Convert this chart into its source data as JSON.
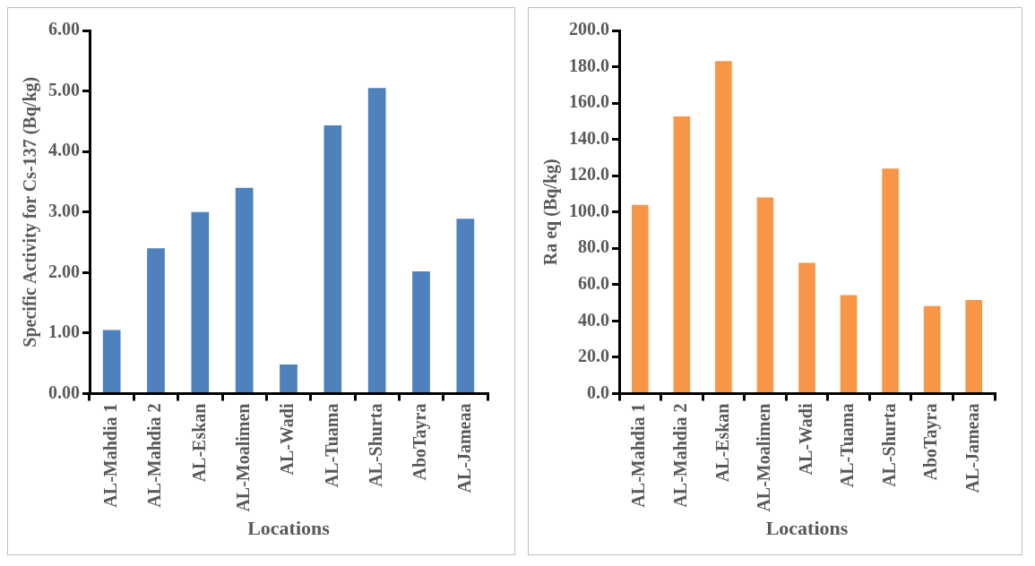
{
  "chart_data": [
    {
      "type": "bar",
      "xlabel": "Locations",
      "ylabel": "Specific Activity for Cs-137 (Bq/kg)",
      "categories": [
        "AL-Mahdia 1",
        "AL-Mahdia 2",
        "AL-Eskan",
        "AL-Moalimen",
        "AL-Wadi",
        "AL-Tuama",
        "AL-Shurta",
        "AboTayra",
        "AL-Jameaa"
      ],
      "series": [
        {
          "color": "#4f81bd",
          "values": [
            1.05,
            2.4,
            3.0,
            3.4,
            0.48,
            4.43,
            5.05,
            2.02,
            2.89
          ]
        }
      ],
      "ylim": [
        0,
        6
      ],
      "yticks": [
        {
          "value": 0,
          "label": "0.00"
        },
        {
          "value": 1,
          "label": "1.00"
        },
        {
          "value": 2,
          "label": "2.00"
        },
        {
          "value": 3,
          "label": "3.00"
        },
        {
          "value": 4,
          "label": "4.00"
        },
        {
          "value": 5,
          "label": "5.00"
        },
        {
          "value": 6,
          "label": "6.00"
        }
      ],
      "grid": false,
      "legend": false
    },
    {
      "type": "bar",
      "xlabel": "Locations",
      "ylabel": "Ra eq (Bq/kg)",
      "categories": [
        "AL-Mahdia 1",
        "AL-Mahdia 2",
        "AL-Eskan",
        "AL-Moalimen",
        "AL-Wadi",
        "AL-Tuama",
        "AL-Shurta",
        "AboTayra",
        "AL-Jameaa"
      ],
      "series": [
        {
          "color": "#f79646",
          "values": [
            104,
            152.6,
            183.1,
            108,
            72,
            54.3,
            123.9,
            48.2,
            51.5
          ]
        }
      ],
      "ylim": [
        0,
        200
      ],
      "yticks": [
        {
          "value": 0,
          "label": "0.0"
        },
        {
          "value": 20,
          "label": "20.0"
        },
        {
          "value": 40,
          "label": "40.0"
        },
        {
          "value": 60,
          "label": "60.0"
        },
        {
          "value": 80,
          "label": "80.0"
        },
        {
          "value": 100,
          "label": "100.0"
        },
        {
          "value": 120,
          "label": "120.0"
        },
        {
          "value": 140,
          "label": "140.0"
        },
        {
          "value": 160,
          "label": "160.0"
        },
        {
          "value": 180,
          "label": "180.0"
        },
        {
          "value": 200,
          "label": "200.0"
        }
      ],
      "grid": false,
      "legend": false
    }
  ]
}
